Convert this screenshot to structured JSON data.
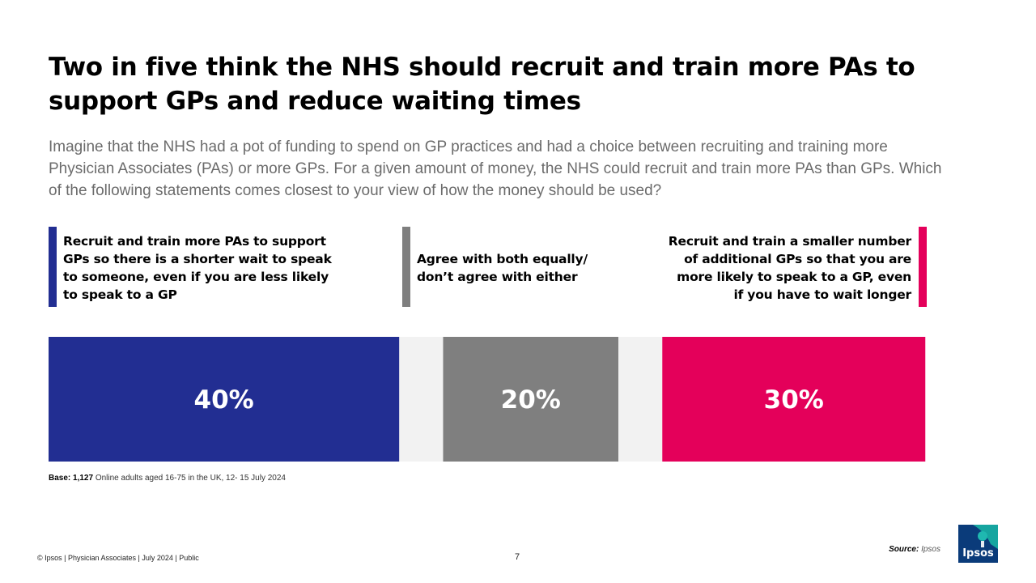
{
  "title": "Two in five think the NHS should recruit and train more PAs to support GPs and reduce waiting times",
  "subtitle": "Imagine that the NHS had a pot of funding to spend on GP practices and had a choice between recruiting and training more Physician Associates (PAs) or more GPs. For a given amount of money, the NHS could recruit and train more PAs than GPs. Which of the following statements comes closest to your view of how the money should be used?",
  "options": [
    {
      "label_lines": [
        "Recruit and train more PAs to support",
        "GPs so there is a shorter wait to speak",
        "to someone, even if you are less likely",
        "to speak to a GP"
      ],
      "color": "#222e92"
    },
    {
      "label_lines": [
        "Agree with both equally/",
        "don’t agree with either"
      ],
      "color": "#7f7f7f"
    },
    {
      "label_lines": [
        "Recruit and train a smaller number",
        "of additional GPs so that you are",
        "more likely to speak to a GP, even",
        "if you have to wait longer"
      ],
      "color": "#e4005a"
    }
  ],
  "chart_data": {
    "type": "bar",
    "orientation": "stacked-horizontal",
    "categories": [
      "Recruit and train more PAs to support GPs so there is a shorter wait to speak to someone, even if you are less likely to speak to a GP",
      "Agree with both equally/ don’t agree with either",
      "Recruit and train a smaller number of additional GPs so that you are more likely to speak to a GP, even if you have to wait longer"
    ],
    "values": [
      40,
      20,
      30
    ],
    "labels": [
      "40%",
      "20%",
      "30%"
    ],
    "remainder_values": [
      5,
      5
    ],
    "unit": "%",
    "colors": [
      "#222e92",
      "#7f7f7f",
      "#e4005a"
    ],
    "remainder_color": "#f2f2f2",
    "legend": "above"
  },
  "base": {
    "label": "Base: 1,127",
    "text": "Online adults aged 16-75 in the UK, 12- 15 July 2024"
  },
  "footer": {
    "left": "© Ipsos | Physician Associates | July 2024 | Public",
    "page": "7",
    "source_label": "Source:",
    "source_value": "Ipsos"
  },
  "logo": {
    "text": "Ipsos"
  }
}
